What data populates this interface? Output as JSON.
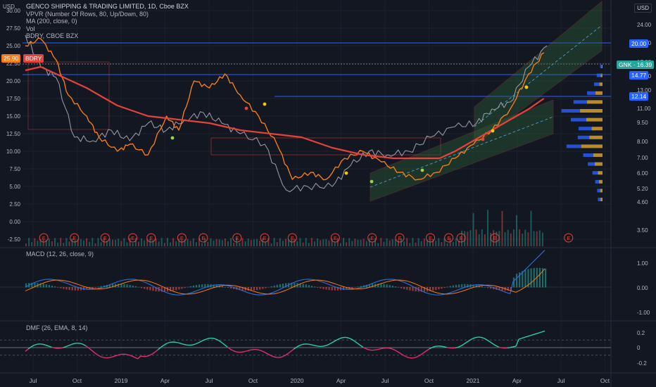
{
  "legend": {
    "title": "GENCO SHIPPING & TRADING LIMITED, 1D, Cboe BZX",
    "vpvr": "VPVR (Number Of Rows, 80, Up/Down, 80)",
    "ma": "MA (200, close, 0)",
    "vol": "Vol",
    "compare": "BDRY, CBOE BZX"
  },
  "currency_left": "USD",
  "currency_right": "USD",
  "macd_label": "MACD (12, 26, close, 9)",
  "dmf_label": "DMF (26, EMA, 8, 14)",
  "right_tags": {
    "t20": "20.00",
    "gnk": "GNK · 16.39",
    "t1477": "14.77",
    "t1214": "12.14"
  },
  "left_tags": {
    "price": "25.90",
    "symbol": "BDRY"
  },
  "colors": {
    "background": "#131722",
    "gnk": "#9598a1",
    "bdry": "#f57c16",
    "ma": "#e5423c",
    "channel": "#3b7a3b",
    "hline": "#2962ff",
    "vp_up": "#2962ff",
    "vp_down": "#d6a12a",
    "macd": "#2f6fdc",
    "signal": "#f57c16",
    "dmf_up": "#26d3a0",
    "dmf_down": "#e0306a"
  },
  "chart_data": {
    "type": "line",
    "time_labels": [
      "Jul",
      "Oct",
      "2019",
      "Apr",
      "Jul",
      "Oct",
      "2020",
      "Apr",
      "Jul",
      "Oct",
      "2021",
      "Apr",
      "Jul",
      "Oct"
    ],
    "left_axis_ticks": [
      "30.00",
      "27.50",
      "25.00",
      "22.50",
      "20.00",
      "17.50",
      "15.00",
      "12.50",
      "10.00",
      "7.50",
      "5.00",
      "2.50",
      "0.00",
      "-2.50"
    ],
    "right_axis_ticks": [
      "24.00",
      "20.00",
      "17.00",
      "15.00",
      "13.00",
      "11.00",
      "9.50",
      "8.00",
      "7.00",
      "6.00",
      "5.20",
      "4.60",
      "3.50"
    ],
    "event_marker": "E",
    "events_t": [
      0.06,
      0.16,
      0.26,
      0.35,
      0.41,
      0.51,
      0.58,
      0.69,
      0.78,
      0.87,
      1.01,
      1.13,
      1.22,
      1.32,
      1.38,
      1.42,
      1.53,
      1.77
    ],
    "macd_ticks": [
      "1.00",
      "0.00",
      "-1.00"
    ],
    "dmf_ticks": [
      "0.2",
      "0",
      "-0.2"
    ],
    "horizontal_levels": [
      20.0,
      14.77,
      12.14
    ],
    "last_price": 16.39,
    "series": [
      {
        "name": "GNK",
        "t": [
          0.0,
          0.05,
          0.1,
          0.16,
          0.22,
          0.28,
          0.34,
          0.4,
          0.46,
          0.52,
          0.58,
          0.64,
          0.7,
          0.78,
          0.85,
          0.92,
          1.0,
          1.06,
          1.12,
          1.18,
          1.25,
          1.32,
          1.4,
          1.47,
          1.52,
          1.58,
          1.64,
          1.7
        ],
        "y": [
          26.5,
          22,
          20.5,
          12,
          11.5,
          13,
          11.5,
          14,
          13,
          14.5,
          15.5,
          14,
          12.5,
          11,
          4.5,
          5,
          5,
          8,
          10,
          9.5,
          10,
          12,
          13.5,
          14,
          16,
          17,
          22,
          25
        ]
      },
      {
        "name": "BDRY",
        "t": [
          0.0,
          0.05,
          0.1,
          0.14,
          0.2,
          0.24,
          0.3,
          0.34,
          0.4,
          0.46,
          0.5,
          0.55,
          0.6,
          0.65,
          0.7,
          0.76,
          0.82,
          0.87,
          0.93,
          0.98,
          1.04,
          1.1,
          1.16,
          1.22,
          1.28,
          1.34,
          1.4,
          1.46,
          1.52,
          1.58,
          1.64,
          1.69
        ],
        "y": [
          25,
          26,
          23,
          18,
          15,
          12,
          10,
          11,
          9.5,
          15,
          13,
          20,
          19,
          21,
          18,
          15,
          11,
          6,
          7,
          6,
          9,
          10,
          8.5,
          7,
          6,
          7,
          9,
          11,
          13,
          16,
          21,
          24
        ]
      },
      {
        "name": "MA (200)",
        "t": [
          0.0,
          0.05,
          0.1,
          0.2,
          0.3,
          0.4,
          0.5,
          0.6,
          0.7,
          0.8,
          0.9,
          1.0,
          1.1,
          1.2,
          1.3,
          1.35,
          1.4,
          1.46,
          1.52,
          1.58,
          1.64,
          1.69
        ],
        "y": [
          21.5,
          22,
          21,
          19,
          16.5,
          15,
          14.5,
          14,
          13,
          12.5,
          12,
          10.5,
          9.5,
          9,
          9,
          9,
          10,
          11.5,
          13,
          14.5,
          16,
          17.5
        ]
      }
    ],
    "volume_profile": [
      {
        "price": 15.5,
        "up": 4,
        "down": 2
      },
      {
        "price": 14.5,
        "up": 10,
        "down": 5
      },
      {
        "price": 13.5,
        "up": 14,
        "down": 8
      },
      {
        "price": 12.5,
        "up": 22,
        "down": 18
      },
      {
        "price": 11.5,
        "up": 35,
        "down": 40
      },
      {
        "price": 10.8,
        "up": 48,
        "down": 58
      },
      {
        "price": 10.0,
        "up": 40,
        "down": 42
      },
      {
        "price": 9.4,
        "up": 34,
        "down": 28
      },
      {
        "price": 8.8,
        "up": 30,
        "down": 34
      },
      {
        "price": 8.2,
        "up": 38,
        "down": 55
      },
      {
        "price": 7.6,
        "up": 26,
        "down": 24
      },
      {
        "price": 7.0,
        "up": 18,
        "down": 20
      },
      {
        "price": 6.4,
        "up": 14,
        "down": 12
      },
      {
        "price": 5.8,
        "up": 10,
        "down": 9
      },
      {
        "price": 5.2,
        "up": 8,
        "down": 6
      },
      {
        "price": 4.6,
        "up": 7,
        "down": 5
      }
    ]
  }
}
